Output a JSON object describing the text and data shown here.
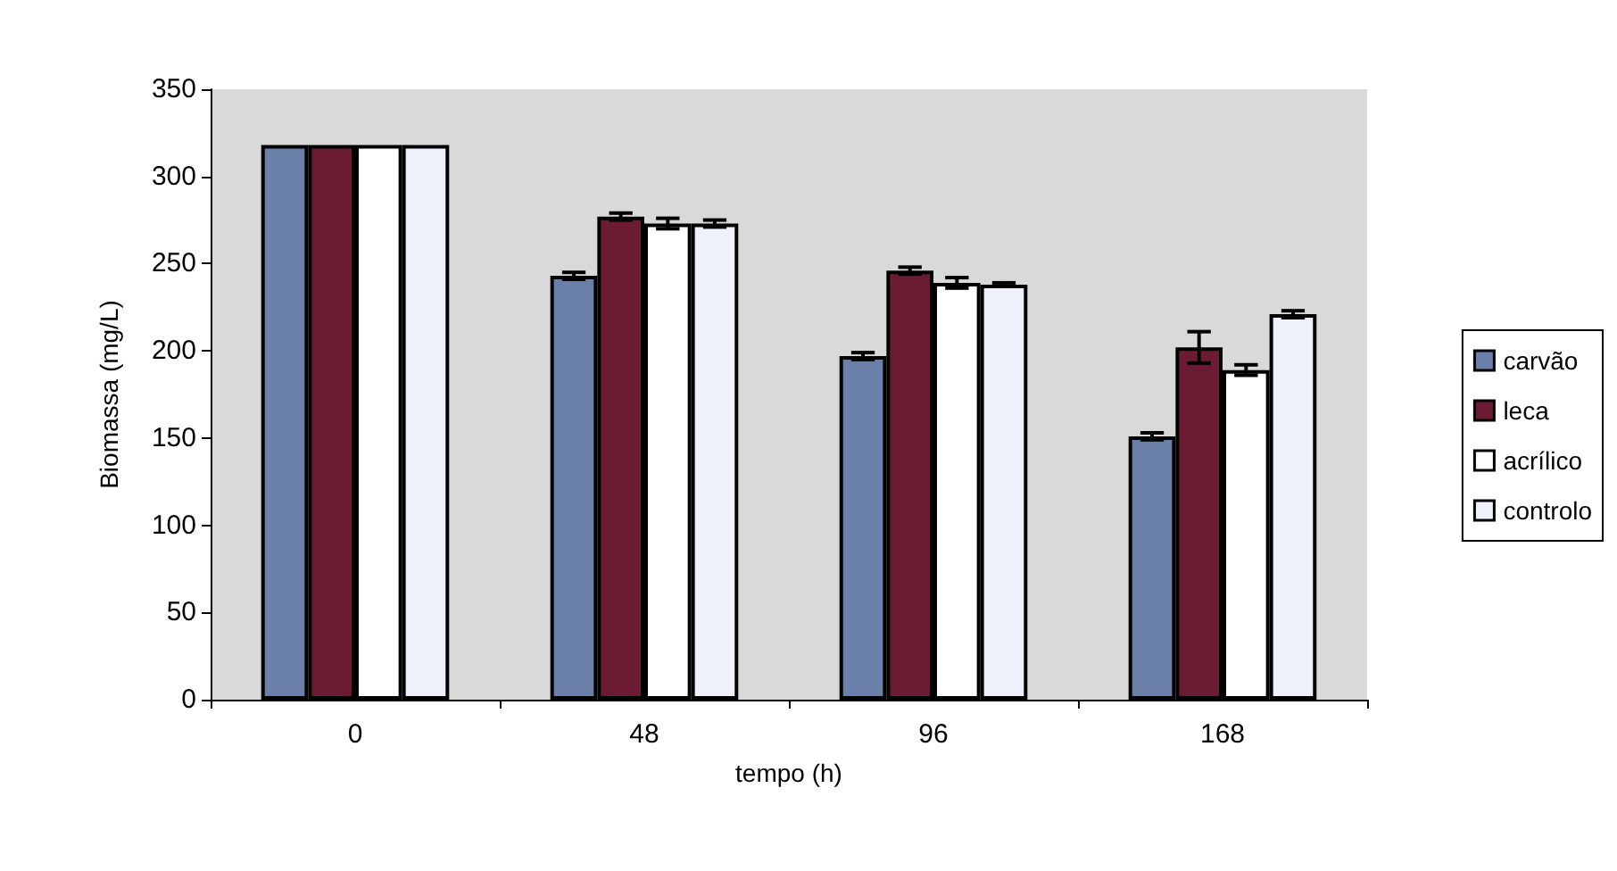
{
  "chart_data": {
    "type": "bar",
    "xlabel": "tempo (h)",
    "ylabel": "Biomassa (mg/L)",
    "categories": [
      "0",
      "48",
      "96",
      "168"
    ],
    "series": [
      {
        "name": "carvão",
        "color": "#6b80a8",
        "values": [
          318,
          243,
          197,
          151
        ],
        "errors": [
          null,
          2,
          2,
          2
        ]
      },
      {
        "name": "leca",
        "color": "#6b1c33",
        "values": [
          318,
          277,
          246,
          202
        ],
        "errors": [
          null,
          2,
          2,
          9
        ]
      },
      {
        "name": "acrílico",
        "color": "#ffffff",
        "values": [
          318,
          273,
          239,
          189
        ],
        "errors": [
          null,
          3,
          3,
          3
        ]
      },
      {
        "name": "controlo",
        "color": "#eef0fa",
        "values": [
          318,
          273,
          238,
          221
        ],
        "errors": [
          null,
          2,
          1,
          2
        ]
      }
    ],
    "ylim": [
      0,
      350
    ],
    "yticks": [
      0,
      50,
      100,
      150,
      200,
      250,
      300,
      350
    ],
    "grid": false,
    "legend": "right"
  }
}
